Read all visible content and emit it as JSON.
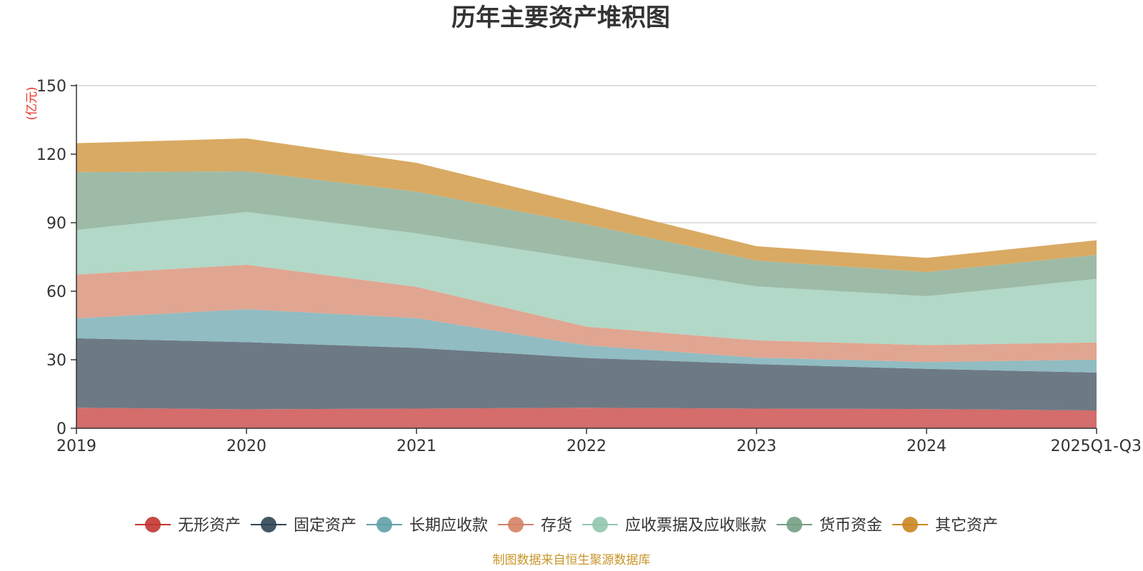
{
  "chart_data": {
    "type": "area",
    "stacked": true,
    "title": "历年主要资产堆积图",
    "unit_label": "(亿元)",
    "categories": [
      "2019",
      "2020",
      "2021",
      "2022",
      "2023",
      "2024",
      "2025Q1-Q3"
    ],
    "ylim": [
      0,
      150
    ],
    "yticks": [
      "0",
      "30",
      "60",
      "90",
      "120",
      "150"
    ],
    "grid": true,
    "legend_position": "bottom",
    "series": [
      {
        "name": "无形资产",
        "color": "#c23531",
        "fill": "#d46d6b",
        "values": [
          9.0,
          8.3,
          8.6,
          9.0,
          8.6,
          8.4,
          7.8
        ]
      },
      {
        "name": "固定资产",
        "color": "#2f4554",
        "fill": "#6d7a85",
        "values": [
          30.4,
          29.4,
          26.6,
          21.8,
          19.5,
          17.6,
          16.6
        ]
      },
      {
        "name": "长期应收款",
        "color": "#61a0a8",
        "fill": "#90bcc2",
        "values": [
          8.7,
          14.4,
          13.0,
          5.5,
          2.8,
          3.0,
          5.6
        ]
      },
      {
        "name": "存货",
        "color": "#d48265",
        "fill": "#e0a692",
        "values": [
          19.2,
          19.5,
          13.7,
          8.2,
          7.6,
          7.4,
          7.6
        ]
      },
      {
        "name": "应收票据及应收账款",
        "color": "#91c7ae",
        "fill": "#b2d8c7",
        "values": [
          19.5,
          23.1,
          23.4,
          29.3,
          23.6,
          21.4,
          27.8
        ]
      },
      {
        "name": "货币资金",
        "color": "#749f83",
        "fill": "#9ebba8",
        "values": [
          25.3,
          17.8,
          18.3,
          15.5,
          11.3,
          10.6,
          10.5
        ]
      },
      {
        "name": "其它资产",
        "color": "#ca8622",
        "fill": "#d9aa63",
        "values": [
          12.7,
          14.4,
          12.6,
          8.7,
          6.3,
          6.2,
          6.4
        ]
      }
    ]
  },
  "footer": {
    "source_text": "制图数据来自恒生聚源数据库"
  }
}
